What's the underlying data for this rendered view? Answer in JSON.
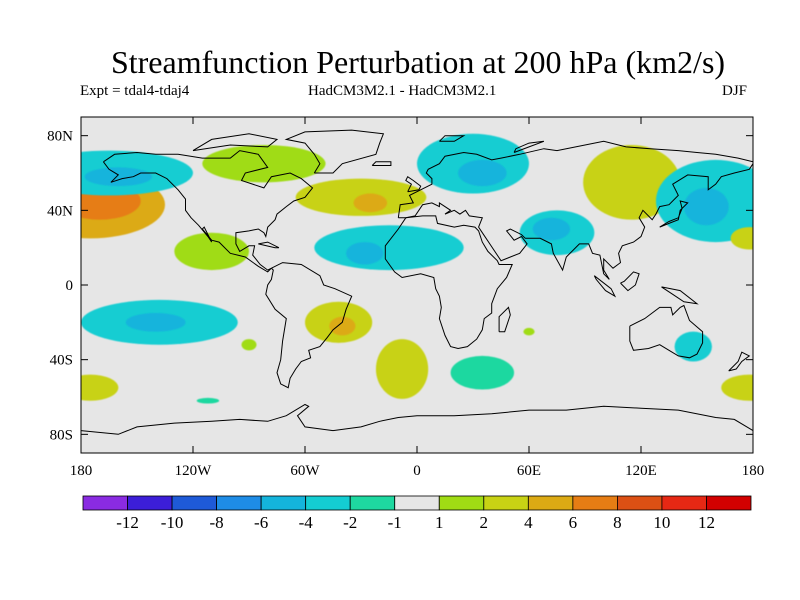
{
  "title": "Streamfunction Perturbation at 200 hPa (km2/s)",
  "subtitle_left": "Expt = tdal4-tdaj4",
  "subtitle_center": "HadCM3M2.1 - HadCM3M2.1",
  "subtitle_right": "DJF",
  "chart_data": {
    "type": "heatmap",
    "projection": "cylindrical-equidistant",
    "x_range": [
      -180,
      180
    ],
    "y_range": [
      -90,
      90
    ],
    "x_ticks": [
      {
        "value": -180,
        "label": "180"
      },
      {
        "value": -120,
        "label": "120W"
      },
      {
        "value": -60,
        "label": "60W"
      },
      {
        "value": 0,
        "label": "0"
      },
      {
        "value": 60,
        "label": "60E"
      },
      {
        "value": 120,
        "label": "120E"
      },
      {
        "value": 180,
        "label": "180"
      }
    ],
    "y_ticks": [
      {
        "value": 80,
        "label": "80N"
      },
      {
        "value": 40,
        "label": "40N"
      },
      {
        "value": 0,
        "label": "0"
      },
      {
        "value": -40,
        "label": "40S"
      },
      {
        "value": -80,
        "label": "80S"
      }
    ],
    "levels": [
      -12,
      -10,
      -8,
      -6,
      -4,
      -2,
      -1,
      1,
      2,
      4,
      6,
      8,
      10,
      12
    ],
    "colors": [
      "#8a2be2",
      "#3c1ed8",
      "#1e5ad8",
      "#1e8ce6",
      "#14b4dc",
      "#14cdd2",
      "#1ed8a0",
      "#e6e6e6",
      "#a0dc14",
      "#c8d214",
      "#dcaa14",
      "#e67d14",
      "#dc5014",
      "#e62814",
      "#d20000"
    ],
    "background_color": "#e6e6e6",
    "features": [
      {
        "name": "N Pacific dipole east",
        "lon": -175,
        "lat": 43,
        "rx": 40,
        "ry": 18,
        "value": 5
      },
      {
        "name": "N Pacific dipole east inner",
        "lon": -170,
        "lat": 45,
        "rx": 22,
        "ry": 10,
        "value": 7
      },
      {
        "name": "Gulf of Alaska",
        "lon": -165,
        "lat": 60,
        "rx": 45,
        "ry": 12,
        "value": -2.5
      },
      {
        "name": "Gulf of Alaska core",
        "lon": -160,
        "lat": 58,
        "rx": 18,
        "ry": 5,
        "value": -5
      },
      {
        "name": "Canada",
        "lon": -82,
        "lat": 65,
        "rx": 33,
        "ry": 10,
        "value": 1.5
      },
      {
        "name": "N Atlantic",
        "lon": -30,
        "lat": 47,
        "rx": 35,
        "ry": 10,
        "value": 3
      },
      {
        "name": "N Atlantic core",
        "lon": -25,
        "lat": 44,
        "rx": 9,
        "ry": 5,
        "value": 5
      },
      {
        "name": "Eurasia north",
        "lon": 30,
        "lat": 65,
        "rx": 30,
        "ry": 16,
        "value": -3
      },
      {
        "name": "Eurasia north core",
        "lon": 35,
        "lat": 60,
        "rx": 13,
        "ry": 7,
        "value": -5
      },
      {
        "name": "Central Asia",
        "lon": 115,
        "lat": 55,
        "rx": 26,
        "ry": 20,
        "value": 2
      },
      {
        "name": "Tropical Atlantic",
        "lon": -15,
        "lat": 20,
        "rx": 40,
        "ry": 12,
        "value": -3
      },
      {
        "name": "Tropical Atlantic core",
        "lon": -28,
        "lat": 17,
        "rx": 10,
        "ry": 6,
        "value": -5
      },
      {
        "name": "Middle East",
        "lon": 75,
        "lat": 28,
        "rx": 20,
        "ry": 12,
        "value": -3
      },
      {
        "name": "Middle East core",
        "lon": 72,
        "lat": 30,
        "rx": 10,
        "ry": 6,
        "value": -5
      },
      {
        "name": "NW Pacific",
        "lon": 160,
        "lat": 45,
        "rx": 32,
        "ry": 22,
        "value": -4
      },
      {
        "name": "NW Pacific core",
        "lon": 155,
        "lat": 42,
        "rx": 12,
        "ry": 10,
        "value": -6
      },
      {
        "name": "E Pacific tropical",
        "lon": -110,
        "lat": 18,
        "rx": 20,
        "ry": 10,
        "value": 1.5
      },
      {
        "name": "S Pacific",
        "lon": -138,
        "lat": -20,
        "rx": 42,
        "ry": 12,
        "value": -4
      },
      {
        "name": "S Pacific core",
        "lon": -140,
        "lat": -20,
        "rx": 16,
        "ry": 5,
        "value": -6
      },
      {
        "name": "Central Pacific tropical",
        "lon": 178,
        "lat": 25,
        "rx": 10,
        "ry": 6,
        "value": 3
      },
      {
        "name": "S America",
        "lon": -42,
        "lat": -20,
        "rx": 18,
        "ry": 11,
        "value": 3
      },
      {
        "name": "S America core",
        "lon": -40,
        "lat": -22,
        "rx": 7,
        "ry": 5,
        "value": 5
      },
      {
        "name": "S Atlantic",
        "lon": -8,
        "lat": -45,
        "rx": 14,
        "ry": 16,
        "value": 2
      },
      {
        "name": "S Indian",
        "lon": 35,
        "lat": -47,
        "rx": 17,
        "ry": 9,
        "value": -2
      },
      {
        "name": "S Indian small",
        "lon": 60,
        "lat": -25,
        "rx": 3,
        "ry": 2,
        "value": 1.5
      },
      {
        "name": "Australia",
        "lon": 148,
        "lat": -33,
        "rx": 10,
        "ry": 8,
        "value": -3
      },
      {
        "name": "SE Indian",
        "lon": 178,
        "lat": -55,
        "rx": 15,
        "ry": 7,
        "value": 2
      },
      {
        "name": "SW Pacific",
        "lon": -175,
        "lat": -55,
        "rx": 15,
        "ry": 7,
        "value": 2
      },
      {
        "name": "S Pacific small",
        "lon": -90,
        "lat": -32,
        "rx": 4,
        "ry": 3,
        "value": 1.5
      },
      {
        "name": "Southern Ocean",
        "lon": -112,
        "lat": -62,
        "rx": 6,
        "ry": 1.5,
        "value": -2
      }
    ]
  },
  "colorbar": {
    "labels": [
      "-12",
      "-10",
      "-8",
      "-6",
      "-4",
      "-2",
      "-1",
      "1",
      "2",
      "4",
      "6",
      "8",
      "10",
      "12"
    ]
  }
}
